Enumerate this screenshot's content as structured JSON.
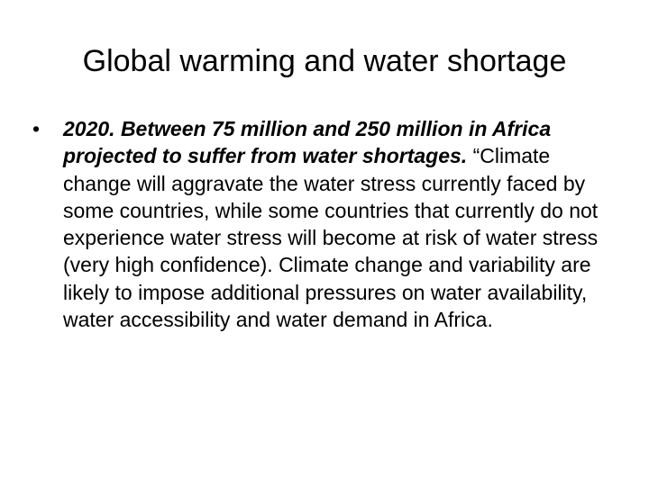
{
  "slide": {
    "title": "Global warming and water shortage",
    "bullets": [
      {
        "marker": "•",
        "lead": "2020.  Between 75 million and 250 million in Africa projected to suffer from water shortages.",
        "text": " “Climate change will aggravate the water stress currently faced by some countries, while some countries that currently do not experience water stress will become at risk of water stress (very high confidence). Climate change and variability are likely to impose additional pressures on water availability, water accessibility and water demand in Africa."
      }
    ]
  }
}
